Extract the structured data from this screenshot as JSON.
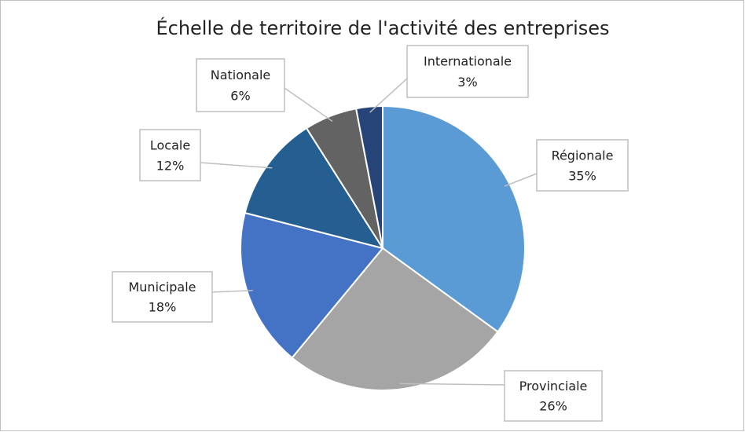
{
  "chart_data": {
    "type": "pie",
    "title": "Échelle de territoire de l'activité des entreprises",
    "categories": [
      "Régionale",
      "Provinciale",
      "Municipale",
      "Locale",
      "Nationale",
      "Internationale"
    ],
    "values": [
      35,
      26,
      18,
      12,
      6,
      3
    ],
    "value_labels": [
      "35%",
      "26%",
      "18%",
      "12%",
      "6%",
      "3%"
    ],
    "colors": [
      "#5b9bd5",
      "#a5a5a5",
      "#4472c4",
      "#255e91",
      "#636363",
      "#264478"
    ]
  }
}
